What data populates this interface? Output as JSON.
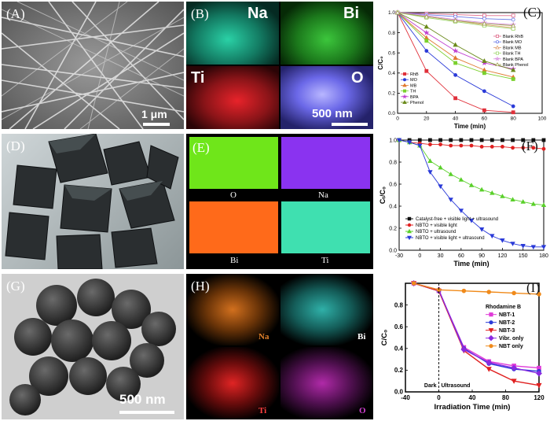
{
  "panels": {
    "A": {
      "label": "(A)",
      "scale": "1 μm"
    },
    "B": {
      "label": "(B)",
      "elements": [
        "Na",
        "Bi",
        "Ti",
        "O"
      ],
      "scale": "500 nm",
      "colors": [
        "#2ad1a6",
        "#3cc63c",
        "#e8232a",
        "#6b68e8"
      ]
    },
    "C": {
      "label": "(C)"
    },
    "D": {
      "label": "(D)"
    },
    "E": {
      "label": "(E)",
      "elements": [
        "O",
        "Na",
        "Bi",
        "Ti"
      ],
      "colors": [
        "#6fe61a",
        "#8a33f0",
        "#ff6a1a",
        "#3fe0b0"
      ]
    },
    "F": {
      "label": "(F)"
    },
    "G": {
      "label": "(G)",
      "scale": "500 nm"
    },
    "H": {
      "label": "(H)",
      "elements": [
        "Na",
        "Bi",
        "Ti",
        "O"
      ],
      "colors": [
        "#d2701e",
        "#2fb0a8",
        "#e02424",
        "#b02aa8"
      ]
    },
    "I": {
      "label": "(I)"
    }
  },
  "chart_data": [
    {
      "id": "C",
      "type": "line",
      "xlabel": "Time (min)",
      "ylabel": "C/C₀",
      "xlim": [
        0,
        100
      ],
      "ylim": [
        0.0,
        1.0
      ],
      "xticks": [
        0,
        20,
        40,
        60,
        80,
        100
      ],
      "yticks": [
        0.0,
        0.2,
        0.4,
        0.6,
        0.8,
        1.0
      ],
      "x": [
        0,
        20,
        40,
        60,
        80
      ],
      "series": [
        {
          "name": "RhB",
          "color": "#e0303a",
          "marker": "square",
          "values": [
            1.0,
            0.42,
            0.15,
            0.03,
            0.01
          ]
        },
        {
          "name": "MO",
          "color": "#2b3bd8",
          "marker": "circle",
          "values": [
            1.0,
            0.62,
            0.38,
            0.22,
            0.07
          ]
        },
        {
          "name": "MB",
          "color": "#e07a30",
          "marker": "triangle",
          "values": [
            1.0,
            0.75,
            0.55,
            0.43,
            0.36
          ]
        },
        {
          "name": "TH",
          "color": "#7bd02e",
          "marker": "square",
          "values": [
            1.0,
            0.72,
            0.5,
            0.4,
            0.34
          ]
        },
        {
          "name": "BPA",
          "color": "#c040d0",
          "marker": "star",
          "values": [
            1.0,
            0.8,
            0.62,
            0.5,
            0.44
          ]
        },
        {
          "name": "Phenol",
          "color": "#6a8a1a",
          "marker": "triangle",
          "values": [
            1.0,
            0.86,
            0.68,
            0.52,
            0.43
          ]
        },
        {
          "name": "Blank RhB",
          "color": "#e06a8a",
          "marker": "open-square",
          "values": [
            1.0,
            0.99,
            0.98,
            0.97,
            0.97
          ]
        },
        {
          "name": "Blank MO",
          "color": "#6a7ae8",
          "marker": "open-circle",
          "values": [
            1.0,
            0.98,
            0.96,
            0.94,
            0.93
          ]
        },
        {
          "name": "Blank MB",
          "color": "#e0a070",
          "marker": "open-triangle",
          "values": [
            1.0,
            0.96,
            0.92,
            0.88,
            0.85
          ]
        },
        {
          "name": "Blank TH",
          "color": "#a0d870",
          "marker": "open-square",
          "values": [
            1.0,
            0.95,
            0.91,
            0.87,
            0.84
          ]
        },
        {
          "name": "Blank BPA",
          "color": "#d890e0",
          "marker": "open-star",
          "values": [
            1.0,
            0.97,
            0.93,
            0.9,
            0.88
          ]
        },
        {
          "name": "Blank Phenol",
          "color": "#a0a050",
          "marker": "open-triangle",
          "values": [
            1.0,
            0.96,
            0.92,
            0.89,
            0.87
          ]
        }
      ],
      "legend_placement": "right"
    },
    {
      "id": "F",
      "type": "line",
      "xlabel": "Time (min)",
      "ylabel": "Cₜ/C₀",
      "xlim": [
        -30,
        180
      ],
      "ylim": [
        0.0,
        1.0
      ],
      "xticks": [
        -30,
        0,
        30,
        60,
        90,
        120,
        150,
        180
      ],
      "yticks": [
        0.0,
        0.2,
        0.4,
        0.6,
        0.8,
        1.0
      ],
      "x": [
        -30,
        -15,
        0,
        15,
        30,
        45,
        60,
        75,
        90,
        105,
        120,
        135,
        150,
        165,
        180
      ],
      "series": [
        {
          "name": "Catalyst-free + visible light + ultrasound",
          "color": "#111111",
          "marker": "square",
          "values": [
            1.0,
            1.0,
            1.0,
            1.0,
            1.0,
            1.0,
            1.0,
            1.0,
            1.0,
            1.0,
            1.0,
            1.0,
            1.0,
            1.0,
            1.0
          ]
        },
        {
          "name": "NBTO + visible light",
          "color": "#e02020",
          "marker": "circle",
          "values": [
            1.0,
            0.98,
            0.97,
            0.96,
            0.96,
            0.95,
            0.95,
            0.95,
            0.94,
            0.94,
            0.94,
            0.93,
            0.93,
            0.93,
            0.92
          ]
        },
        {
          "name": "NBTO + ultrasound",
          "color": "#5ad02a",
          "marker": "triangle",
          "values": [
            1.0,
            0.98,
            0.95,
            0.81,
            0.75,
            0.69,
            0.64,
            0.59,
            0.55,
            0.52,
            0.49,
            0.46,
            0.44,
            0.42,
            0.41
          ]
        },
        {
          "name": "NBTO + visible light + ultrasound",
          "color": "#2a3ad8",
          "marker": "triangle-down",
          "values": [
            1.0,
            0.98,
            0.95,
            0.71,
            0.58,
            0.46,
            0.36,
            0.27,
            0.19,
            0.13,
            0.09,
            0.06,
            0.04,
            0.03,
            0.03
          ]
        }
      ],
      "legend_placement": "bottom-left"
    },
    {
      "id": "I",
      "type": "line",
      "xlabel": "Irradiation Time (min)",
      "ylabel": "C/C₀",
      "xlim": [
        -40,
        120
      ],
      "ylim": [
        0.0,
        1.0
      ],
      "xticks": [
        -40,
        0,
        40,
        80,
        120
      ],
      "yticks": [
        0.0,
        0.2,
        0.4,
        0.6,
        0.8
      ],
      "x": [
        -30,
        0,
        30,
        60,
        90,
        120
      ],
      "legend_title": "Rhodamine B",
      "annotations": [
        "Dark",
        "Ultrasound"
      ],
      "series": [
        {
          "name": "NBT-1",
          "color": "#e03ad8",
          "marker": "square",
          "values": [
            1.0,
            0.93,
            0.41,
            0.28,
            0.24,
            0.22
          ]
        },
        {
          "name": "NBT-2",
          "color": "#2a3ad8",
          "marker": "circle",
          "values": [
            1.0,
            0.93,
            0.4,
            0.26,
            0.21,
            0.19
          ]
        },
        {
          "name": "NBT-3",
          "color": "#e02020",
          "marker": "triangle-down",
          "values": [
            1.0,
            0.93,
            0.38,
            0.21,
            0.1,
            0.06
          ]
        },
        {
          "name": "Vibr. only",
          "color": "#8a2ae0",
          "marker": "diamond",
          "values": [
            1.0,
            0.94,
            0.39,
            0.27,
            0.22,
            0.17
          ]
        },
        {
          "name": "NBT only",
          "color": "#f08a1a",
          "marker": "circle",
          "values": [
            1.0,
            0.94,
            0.93,
            0.92,
            0.91,
            0.9
          ]
        }
      ],
      "legend_placement": "right"
    }
  ]
}
